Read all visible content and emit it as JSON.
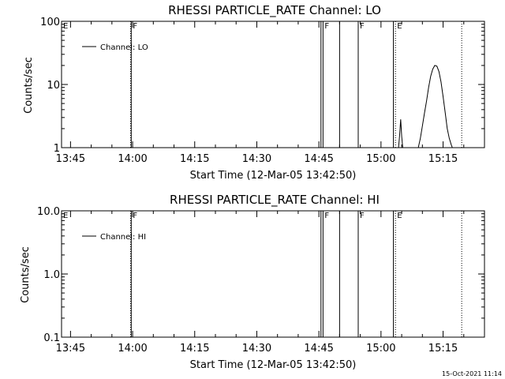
{
  "chart_data": [
    {
      "type": "line",
      "title": "RHESSI PARTICLE_RATE Channel: LO",
      "xlabel": "Start Time (12-Mar-05 13:42:50)",
      "ylabel": "Counts/sec",
      "yscale": "log",
      "xlim": [
        "13:42:50",
        "15:25:00"
      ],
      "ylim": [
        1,
        100
      ],
      "xticks": [
        "13:45",
        "14:00",
        "14:15",
        "14:30",
        "14:45",
        "15:00",
        "15:15"
      ],
      "yticks": [
        "1",
        "10",
        "100"
      ],
      "legend": {
        "label": "Channel: LO",
        "placement": "top-left"
      },
      "event_markers": [
        {
          "label": "E",
          "time": "13:42:50",
          "style": "dotted"
        },
        {
          "label": "F",
          "time": "13:59:40",
          "style": "solid"
        },
        {
          "label": "F",
          "time": "14:46:00",
          "style": "solid"
        },
        {
          "label": "F",
          "time": "14:54:30",
          "style": "solid"
        },
        {
          "label": "E",
          "time": "15:03:30",
          "style": "dotted"
        }
      ],
      "extra_lines": [
        {
          "time": "13:59:30",
          "style": "dotted"
        },
        {
          "time": "14:45:30",
          "style": "solid"
        },
        {
          "time": "14:50:00",
          "style": "solid"
        },
        {
          "time": "15:03:00",
          "style": "solid"
        },
        {
          "time": "15:19:30",
          "style": "dotted"
        }
      ],
      "series": [
        {
          "name": "Channel: LO",
          "x": [
            "15:04:15",
            "15:04:30",
            "15:04:45",
            "15:05:00",
            "15:05:15",
            "15:09:00",
            "15:09:30",
            "15:10:00",
            "15:10:30",
            "15:11:00",
            "15:11:30",
            "15:12:00",
            "15:12:30",
            "15:13:00",
            "15:13:30",
            "15:14:00",
            "15:14:30",
            "15:15:00",
            "15:15:30",
            "15:16:00",
            "15:16:30",
            "15:17:00",
            "15:17:15"
          ],
          "y": [
            1.0,
            1.6,
            2.8,
            1.5,
            1.0,
            1.0,
            1.4,
            2.2,
            3.5,
            5.5,
            9.0,
            13.5,
            17.5,
            20.0,
            19.5,
            16.0,
            11.0,
            6.5,
            3.6,
            2.0,
            1.4,
            1.1,
            1.0
          ]
        }
      ]
    },
    {
      "type": "line",
      "title": "RHESSI PARTICLE_RATE Channel: HI",
      "xlabel": "Start Time (12-Mar-05 13:42:50)",
      "ylabel": "Counts/sec",
      "yscale": "log",
      "xlim": [
        "13:42:50",
        "15:25:00"
      ],
      "ylim": [
        0.1,
        10
      ],
      "xticks": [
        "13:45",
        "14:00",
        "14:15",
        "14:30",
        "14:45",
        "15:00",
        "15:15"
      ],
      "yticks": [
        "0.1",
        "1.0",
        "10.0"
      ],
      "legend": {
        "label": "Channel: HI",
        "placement": "top-left"
      },
      "event_markers": [
        {
          "label": "E",
          "time": "13:42:50",
          "style": "dotted"
        },
        {
          "label": "F",
          "time": "13:59:40",
          "style": "solid"
        },
        {
          "label": "F",
          "time": "14:46:00",
          "style": "solid"
        },
        {
          "label": "F",
          "time": "14:54:30",
          "style": "solid"
        },
        {
          "label": "E",
          "time": "15:03:30",
          "style": "dotted"
        }
      ],
      "extra_lines": [
        {
          "time": "13:59:30",
          "style": "dotted"
        },
        {
          "time": "14:45:30",
          "style": "solid"
        },
        {
          "time": "14:50:00",
          "style": "solid"
        },
        {
          "time": "15:03:00",
          "style": "solid"
        },
        {
          "time": "15:19:30",
          "style": "dotted"
        }
      ],
      "series": [
        {
          "name": "Channel: HI",
          "x": [],
          "y": []
        }
      ]
    }
  ],
  "timestamp": "15-Oct-2021 11:14"
}
